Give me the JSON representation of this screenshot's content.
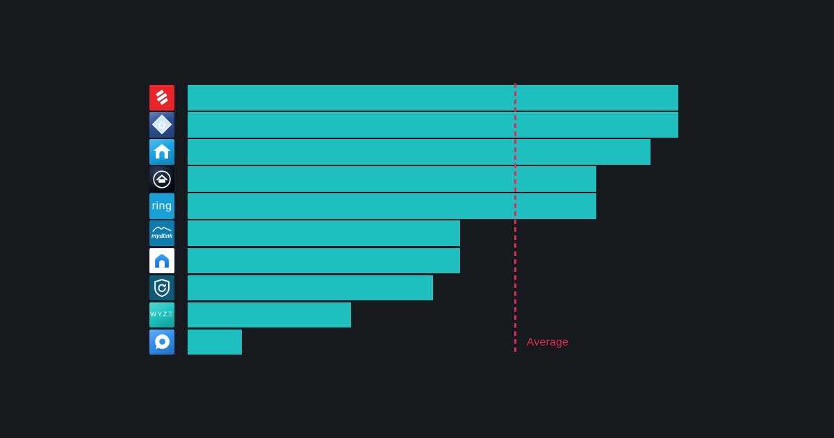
{
  "colors": {
    "background": "#161a1e",
    "bar_teal": "#20bfbf",
    "accent_red": "#e6294e"
  },
  "chart_data": {
    "type": "bar",
    "orientation": "horizontal",
    "title": "",
    "xlabel": "",
    "ylabel": "",
    "axis": {
      "min": 3.0,
      "max": 4.9,
      "tick_labels_visible": false,
      "grid": false
    },
    "legend": "none",
    "average": {
      "label": "Average",
      "value": 4.2
    },
    "rows": [
      {
        "icon": "simplisafe-logo-icon",
        "label": "",
        "icon_bg": "#e8252b",
        "value": 4.8
      },
      {
        "icon": "diamond-house-icon",
        "label": "",
        "icon_bg": "#2c4f93",
        "value": 4.8
      },
      {
        "icon": "house-arch-icon",
        "label": "",
        "icon_bg": "#17a3e4",
        "value": 4.7
      },
      {
        "icon": "circle-house-icon",
        "label": "",
        "icon_bg": "#0d1524",
        "value": 4.5
      },
      {
        "icon": "ring-logo-icon",
        "label": "ring",
        "icon_bg": "#17a0d5",
        "value": 4.5
      },
      {
        "icon": "mydlink-logo-icon",
        "label": "mydlink",
        "icon_bg": "#0e7dad",
        "value": 4.0
      },
      {
        "icon": "smart-life-house-icon",
        "label": "",
        "icon_bg": "#ffffff",
        "value": 4.0
      },
      {
        "icon": "shield-refresh-icon",
        "label": "",
        "icon_bg": "#0f5a74",
        "value": 3.9
      },
      {
        "icon": "wyze-logo-icon",
        "label": "WYZΞ",
        "icon_bg": "#1cc6c0",
        "value": 3.6
      },
      {
        "icon": "pin-bubble-icon",
        "label": "",
        "icon_bg": "#2f8ff0",
        "value": 3.2
      }
    ]
  }
}
